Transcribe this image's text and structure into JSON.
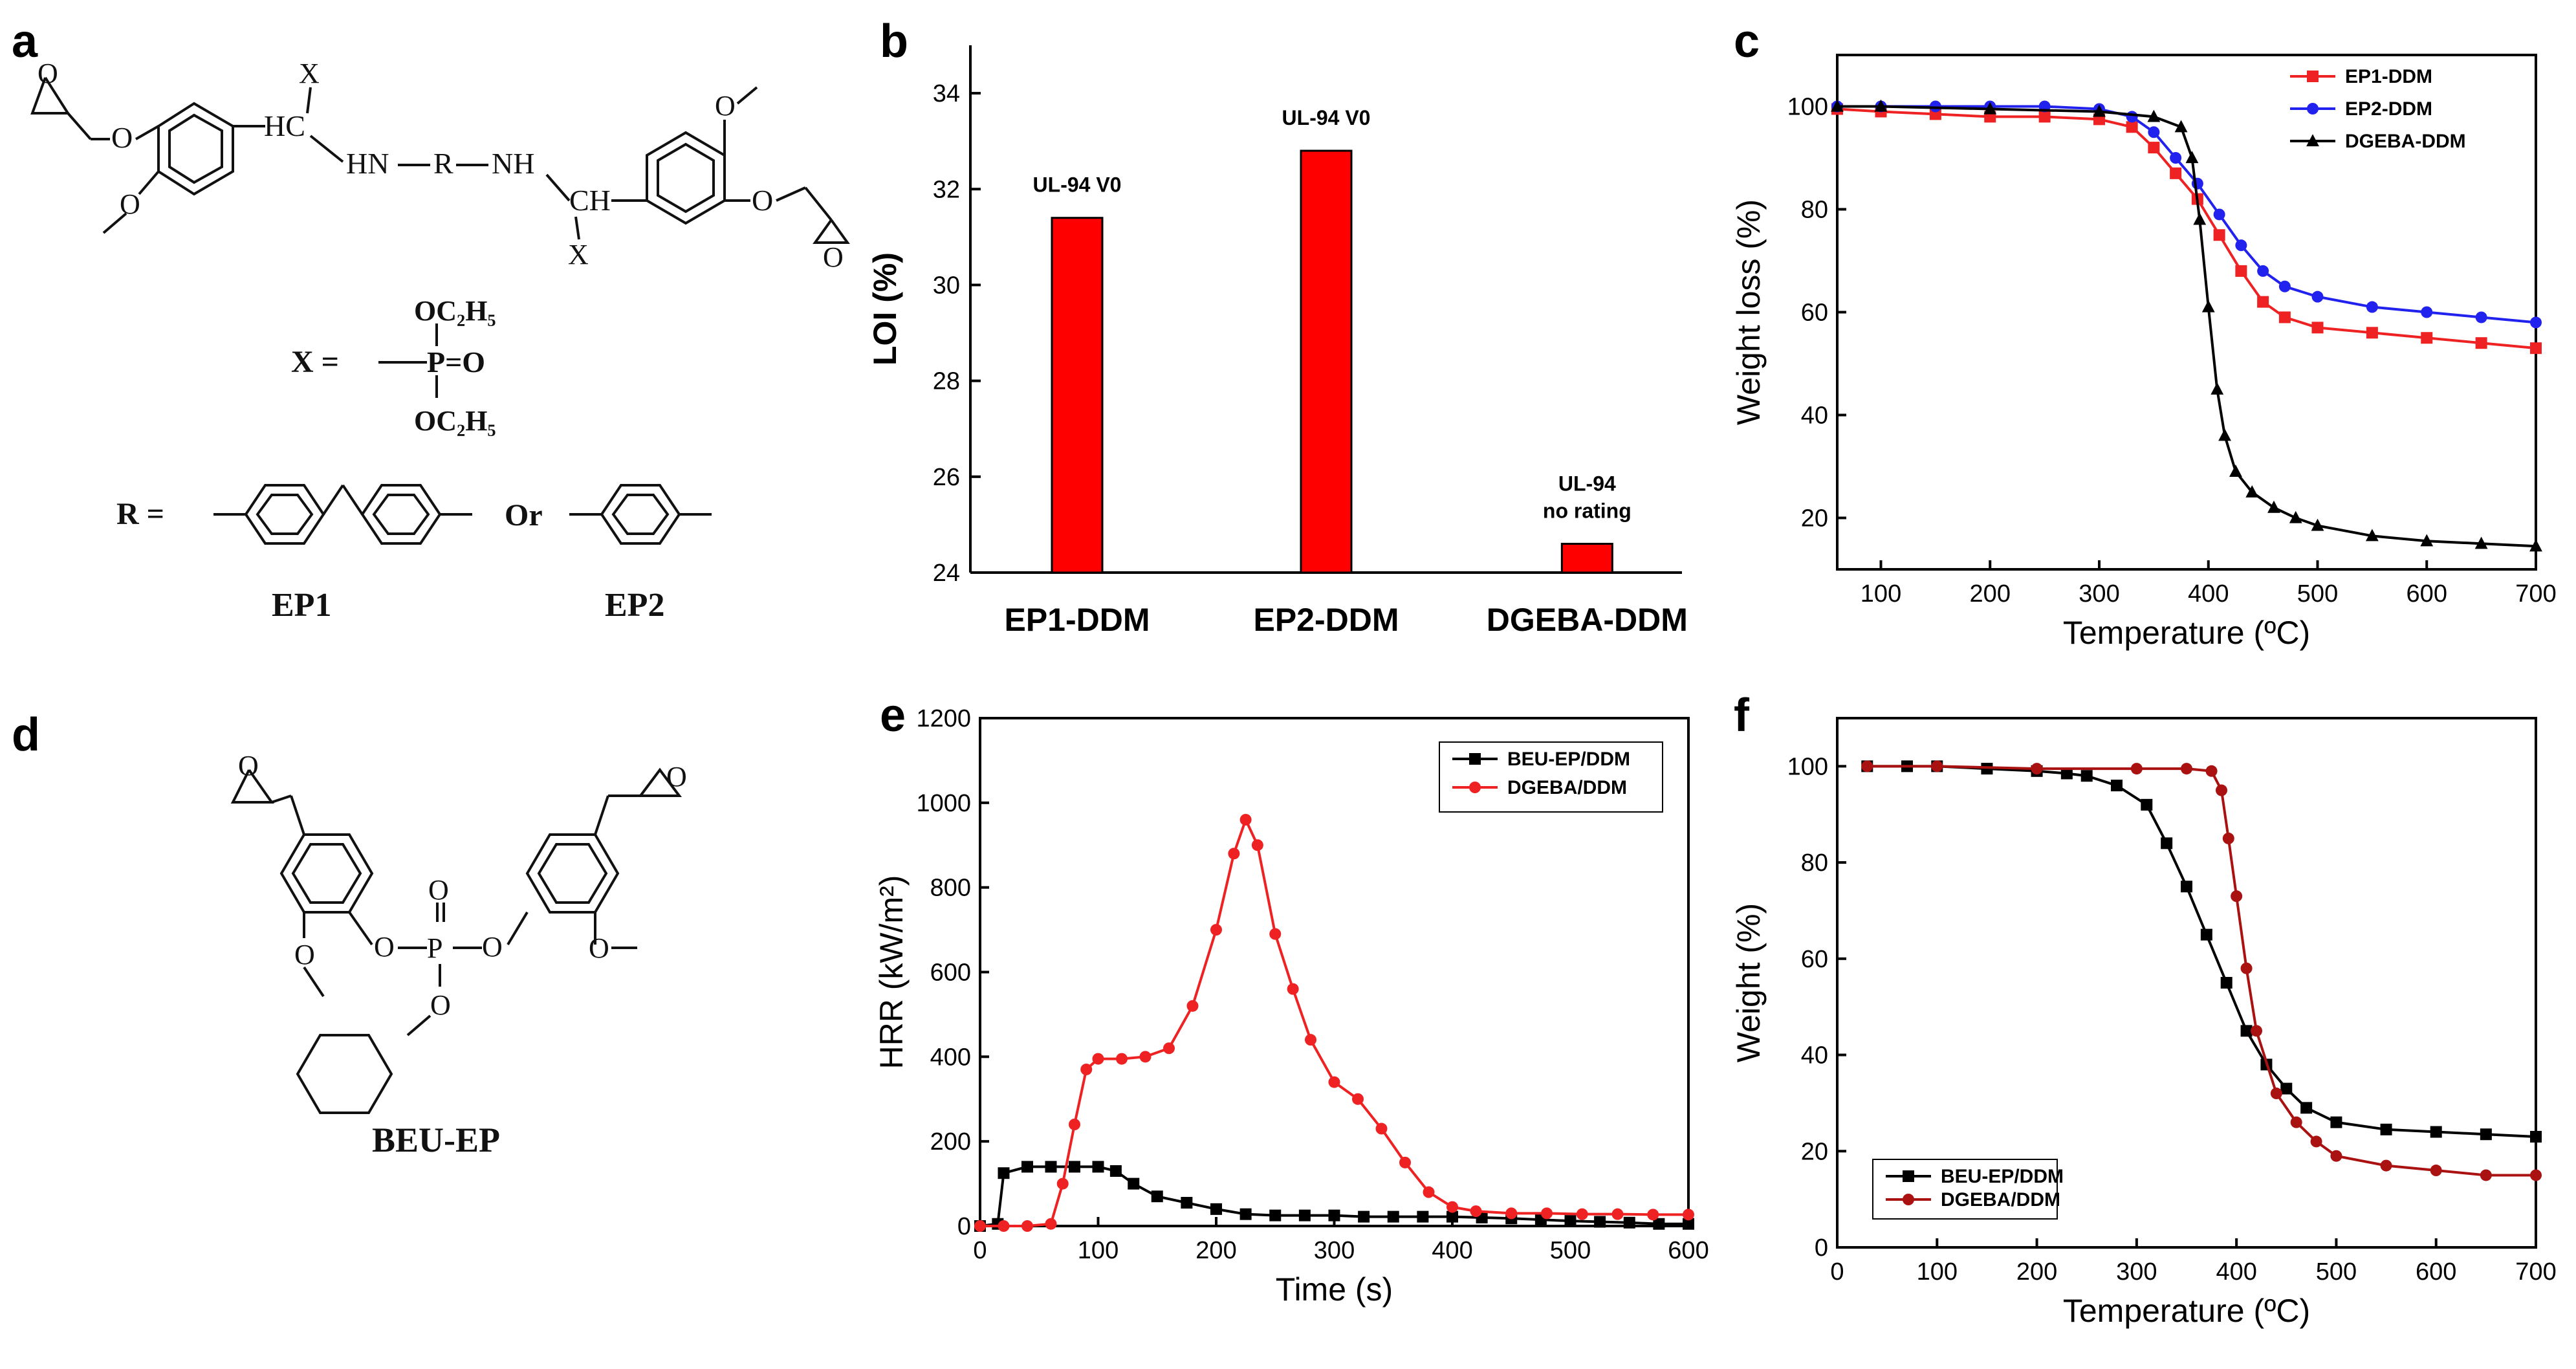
{
  "panels": {
    "a": "a",
    "b": "b",
    "c": "c",
    "d": "d",
    "e": "e",
    "f": "f"
  },
  "structure_a": {
    "x_sym": "X",
    "hc": "HC",
    "ch": "CH",
    "hn": "HN",
    "r": "R",
    "nh": "NH",
    "x_def": "X  =",
    "oc2h5_top": "OC₂H₅",
    "p_eq_o": "P=O",
    "oc2h5_bottom": "OC₂H₅",
    "r_def": "R  =",
    "or": "Or",
    "ep1": "EP1",
    "ep2": "EP2"
  },
  "structure_d": {
    "o": "O",
    "p": "P",
    "beu_ep": "BEU-EP"
  },
  "chart_data": [
    {
      "panel": "b",
      "type": "bar",
      "categories": [
        "EP1-DDM",
        "EP2-DDM",
        "DGEBA-DDM"
      ],
      "values": [
        31.4,
        32.8,
        24.6
      ],
      "bar_labels": [
        "UL-94 V0",
        "UL-94 V0",
        "UL-94\nno rating"
      ],
      "xlabel": "",
      "ylabel": "LOI (%)",
      "ylim": [
        24,
        35
      ],
      "yticks": [
        24,
        26,
        28,
        30,
        32,
        34
      ],
      "color": "#ff0000"
    },
    {
      "panel": "c",
      "type": "line",
      "xlabel": "Temperature (ºC)",
      "ylabel": "Weight loss (%)",
      "xlim": [
        60,
        700
      ],
      "ylim": [
        10,
        110
      ],
      "xticks": [
        100,
        200,
        300,
        400,
        500,
        600,
        700
      ],
      "yticks": [
        20,
        40,
        60,
        80,
        100
      ],
      "legend_position": "top-right",
      "series": [
        {
          "name": "EP1-DDM",
          "color": "#ee2222",
          "marker": "square",
          "x": [
            60,
            100,
            150,
            200,
            250,
            300,
            330,
            350,
            370,
            390,
            410,
            430,
            450,
            470,
            500,
            550,
            600,
            650,
            700
          ],
          "y": [
            99.5,
            99,
            98.5,
            98,
            98,
            97.5,
            96,
            92,
            87,
            82,
            75,
            68,
            62,
            59,
            57,
            56,
            55,
            54,
            53
          ]
        },
        {
          "name": "EP2-DDM",
          "color": "#2222ee",
          "marker": "circle",
          "x": [
            60,
            100,
            150,
            200,
            250,
            300,
            330,
            350,
            370,
            390,
            410,
            430,
            450,
            470,
            500,
            550,
            600,
            650,
            700
          ],
          "y": [
            100,
            100,
            100,
            100,
            100,
            99.5,
            98,
            95,
            90,
            85,
            79,
            73,
            68,
            65,
            63,
            61,
            60,
            59,
            58
          ]
        },
        {
          "name": "DGEBA-DDM",
          "color": "#000000",
          "marker": "triangle",
          "x": [
            60,
            100,
            200,
            300,
            350,
            375,
            385,
            392,
            400,
            408,
            415,
            425,
            440,
            460,
            480,
            500,
            550,
            600,
            650,
            700
          ],
          "y": [
            100,
            100,
            99.5,
            99,
            98,
            96,
            90,
            78,
            61,
            45,
            36,
            29,
            25,
            22,
            20,
            18.5,
            16.5,
            15.5,
            15,
            14.5
          ]
        }
      ]
    },
    {
      "panel": "e",
      "type": "line",
      "xlabel": "Time (s)",
      "ylabel": "HRR (kW/m²)",
      "xlim": [
        0,
        600
      ],
      "ylim": [
        0,
        1200
      ],
      "xticks": [
        0,
        100,
        200,
        300,
        400,
        500,
        600
      ],
      "yticks": [
        0,
        200,
        400,
        600,
        800,
        1000,
        1200
      ],
      "legend_position": "top-right",
      "series": [
        {
          "name": "BEU-EP/DDM",
          "color": "#000000",
          "marker": "square",
          "x": [
            0,
            15,
            20,
            40,
            60,
            80,
            100,
            115,
            130,
            150,
            175,
            200,
            225,
            250,
            275,
            300,
            325,
            350,
            375,
            400,
            425,
            450,
            475,
            500,
            525,
            550,
            575,
            600
          ],
          "y": [
            0,
            5,
            125,
            140,
            140,
            140,
            140,
            130,
            100,
            70,
            55,
            40,
            28,
            25,
            25,
            25,
            22,
            22,
            22,
            22,
            20,
            18,
            15,
            12,
            10,
            8,
            5,
            5
          ]
        },
        {
          "name": "DGEBA/DDM",
          "color": "#ee2222",
          "marker": "circle",
          "x": [
            0,
            20,
            40,
            60,
            70,
            80,
            90,
            100,
            120,
            140,
            160,
            180,
            200,
            215,
            225,
            235,
            250,
            265,
            280,
            300,
            320,
            340,
            360,
            380,
            400,
            420,
            450,
            480,
            510,
            540,
            570,
            600
          ],
          "y": [
            0,
            0,
            0,
            5,
            100,
            240,
            370,
            395,
            395,
            400,
            420,
            520,
            700,
            880,
            960,
            900,
            690,
            560,
            440,
            340,
            300,
            230,
            150,
            80,
            45,
            35,
            30,
            30,
            28,
            28,
            27,
            27
          ]
        }
      ]
    },
    {
      "panel": "f",
      "type": "line",
      "xlabel": "Temperature (ºC)",
      "ylabel": "Weight (%)",
      "xlim": [
        0,
        700
      ],
      "ylim": [
        0,
        110
      ],
      "xticks": [
        0,
        100,
        200,
        300,
        400,
        500,
        600,
        700
      ],
      "yticks": [
        0,
        20,
        40,
        60,
        80,
        100
      ],
      "legend_position": "bottom-left",
      "series": [
        {
          "name": "BEU-EP/DDM",
          "color": "#000000",
          "marker": "square",
          "x": [
            30,
            70,
            100,
            150,
            200,
            230,
            250,
            280,
            310,
            330,
            350,
            370,
            390,
            410,
            430,
            450,
            470,
            500,
            550,
            600,
            650,
            700
          ],
          "y": [
            100,
            100,
            100,
            99.5,
            99,
            98.5,
            98,
            96,
            92,
            84,
            75,
            65,
            55,
            45,
            38,
            33,
            29,
            26,
            24.5,
            24,
            23.5,
            23
          ]
        },
        {
          "name": "DGEBA/DDM",
          "color": "#aa1111",
          "marker": "circle",
          "x": [
            30,
            100,
            200,
            300,
            350,
            375,
            385,
            392,
            400,
            410,
            420,
            440,
            460,
            480,
            500,
            550,
            600,
            650,
            700
          ],
          "y": [
            100,
            100,
            99.5,
            99.5,
            99.5,
            99,
            95,
            85,
            73,
            58,
            45,
            32,
            26,
            22,
            19,
            17,
            16,
            15,
            15
          ]
        }
      ]
    }
  ]
}
